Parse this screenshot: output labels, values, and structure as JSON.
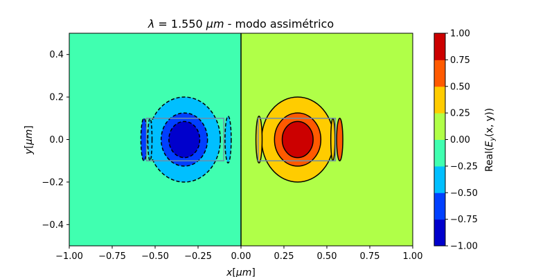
{
  "chart_data": {
    "type": "heatmap",
    "title": {
      "lambda": "λ",
      "equals_value": " = 1.550 ",
      "unit": "μm",
      "suffix": " - modo assimétrico"
    },
    "xlabel": {
      "var": "x",
      "unit_open": "[",
      "unit": "μm",
      "unit_close": "]"
    },
    "ylabel": {
      "var": "y",
      "unit_open": "[",
      "unit": "μm",
      "unit_close": "]"
    },
    "colorbar_label": {
      "prefix": "Real(",
      "E": "E",
      "sub": "y",
      "args": "(x, y)",
      "suffix": ")"
    },
    "xlim": [
      -1.0,
      1.0
    ],
    "ylim": [
      -0.5,
      0.5
    ],
    "x_ticks": [
      -1.0,
      -0.75,
      -0.5,
      -0.25,
      0.0,
      0.25,
      0.5,
      0.75,
      1.0
    ],
    "x_tick_labels": [
      "−1.00",
      "−0.75",
      "−0.50",
      "−0.25",
      "0.00",
      "0.25",
      "0.50",
      "0.75",
      "1.00"
    ],
    "y_ticks": [
      -0.4,
      -0.2,
      0.0,
      0.2,
      0.4
    ],
    "y_tick_labels": [
      "−0.4",
      "−0.2",
      "0.0",
      "0.2",
      "0.4"
    ],
    "color_levels": [
      -1.0,
      -0.75,
      -0.5,
      -0.25,
      0.0,
      0.25,
      0.5,
      0.75,
      1.0
    ],
    "colorbar_tick_labels": [
      "−1.00",
      "−0.75",
      "−0.50",
      "−0.25",
      "0.00",
      "0.25",
      "0.50",
      "0.75",
      "1.00"
    ],
    "level_colors": [
      "#0000cc",
      "#0040ff",
      "#00bfff",
      "#40ffb0",
      "#b0ff48",
      "#ffcc00",
      "#ff5a00",
      "#cc0000"
    ],
    "divider_x": 0.0,
    "waveguide_rect": {
      "x_range": [
        0.1,
        0.55
      ],
      "y_range": [
        -0.1,
        0.1
      ],
      "color": "#6f8fa8"
    },
    "lobes": [
      {
        "side": "right",
        "level_range": [
          0.25,
          0.5
        ],
        "color": "#ffcc00",
        "center": [
          0.33,
          0.0
        ],
        "half_width": 0.21,
        "half_height": 0.2
      },
      {
        "side": "right",
        "level_range": [
          0.5,
          0.75
        ],
        "color": "#ff5a00",
        "center": [
          0.33,
          0.0
        ],
        "half_width": 0.135,
        "half_height": 0.125
      },
      {
        "side": "right",
        "level_range": [
          0.75,
          1.0
        ],
        "color": "#cc0000",
        "center": [
          0.33,
          0.0
        ],
        "half_width": 0.09,
        "half_height": 0.085
      },
      {
        "side": "left",
        "level_range": [
          -0.5,
          -0.25
        ],
        "color": "#00bfff",
        "center": [
          -0.33,
          0.0
        ],
        "half_width": 0.21,
        "half_height": 0.2
      },
      {
        "side": "left",
        "level_range": [
          -0.75,
          -0.5
        ],
        "color": "#0040ff",
        "center": [
          -0.33,
          0.0
        ],
        "half_width": 0.135,
        "half_height": 0.125
      },
      {
        "side": "left",
        "level_range": [
          -1.0,
          -0.75
        ],
        "color": "#0000cc",
        "center": [
          -0.33,
          0.0
        ],
        "half_width": 0.09,
        "half_height": 0.085
      }
    ],
    "side_lobes": [
      {
        "side": "right",
        "color": "#ffcc00",
        "center": [
          0.105,
          0.0
        ],
        "half_width": 0.018,
        "half_height": 0.11
      },
      {
        "side": "right",
        "color": "#ff5a00",
        "center": [
          0.575,
          0.0
        ],
        "half_width": 0.018,
        "half_height": 0.1
      },
      {
        "side": "right",
        "color": "#ffcc00",
        "center": [
          0.535,
          0.0
        ],
        "half_width": 0.012,
        "half_height": 0.1
      },
      {
        "side": "left",
        "color": "#00bfff",
        "center": [
          -0.075,
          0.0
        ],
        "half_width": 0.018,
        "half_height": 0.11
      },
      {
        "side": "left",
        "color": "#0040ff",
        "center": [
          -0.565,
          0.0
        ],
        "half_width": 0.018,
        "half_height": 0.1
      },
      {
        "side": "left",
        "color": "#00bfff",
        "center": [
          -0.53,
          0.0
        ],
        "half_width": 0.012,
        "half_height": 0.1
      }
    ]
  }
}
